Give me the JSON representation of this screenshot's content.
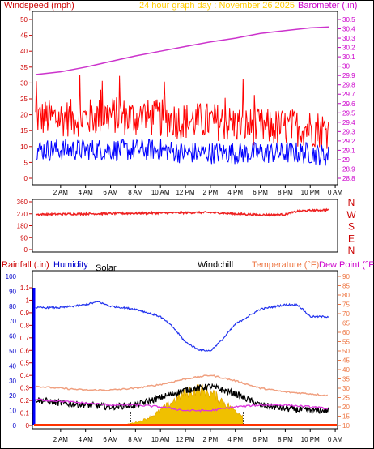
{
  "header": {
    "windspeed_label": "Windspeed (mph)",
    "title": "24 hour graph day : November 26 2025",
    "barometer_label": "Barometer (.in)"
  },
  "legend2": {
    "rainfall_label": "Rainfall (.in)",
    "humidity_label": "Humidity",
    "solar_label": "Solar",
    "windchill_label": "Windchill",
    "temperature_label": "Temperature (°F)",
    "dewpoint_label": "Dew Point (°F)"
  },
  "colors": {
    "wind_gust": "#ff0000",
    "wind_avg": "#0000ff",
    "barometer": "#cc33cc",
    "direction": "#ee2222",
    "humidity": "#2233ee",
    "temperature": "#f0a080",
    "windchill": "#000000",
    "dewpoint": "#dd33dd",
    "solar": "#f0c000",
    "rainfall": "#ff3300"
  },
  "chart_data": [
    {
      "type": "line",
      "name": "wind-barometer",
      "x_ticks": [
        "2 AM",
        "4 AM",
        "6 AM",
        "8 AM",
        "10 AM",
        "12 PM",
        "2 PM",
        "4 PM",
        "6 PM",
        "8 PM",
        "10 PM",
        "0 AM"
      ],
      "y_left_ticks": [
        "0",
        "5",
        "10",
        "15",
        "20",
        "25",
        "30",
        "35",
        "40",
        "45",
        "50"
      ],
      "y_left_range": [
        0,
        50
      ],
      "y_right_ticks": [
        "28.8",
        "28.9",
        "29",
        "29.1",
        "29.2",
        "29.3",
        "29.4",
        "29.5",
        "29.6",
        "29.7",
        "29.8",
        "29.9",
        "30",
        "30.1",
        "30.2",
        "30.3",
        "30.4",
        "30.5"
      ],
      "y_right_range": [
        28.8,
        30.5
      ],
      "barometer": {
        "x_hours": [
          0,
          2,
          4,
          6,
          8,
          10,
          12,
          14,
          16,
          18,
          20,
          22,
          23.5
        ],
        "values": [
          29.91,
          29.94,
          29.99,
          30.05,
          30.11,
          30.16,
          30.21,
          30.26,
          30.3,
          30.35,
          30.38,
          30.41,
          30.42
        ]
      },
      "wind_gust": {
        "x_hours": [
          0,
          2,
          4,
          6,
          8,
          10,
          12,
          14,
          16,
          18,
          20,
          22,
          23.5
        ],
        "values": [
          19,
          19,
          19,
          20,
          19,
          19,
          18,
          18,
          17,
          16,
          16,
          16,
          15
        ]
      },
      "wind_avg": {
        "x_hours": [
          0,
          2,
          4,
          6,
          8,
          10,
          12,
          14,
          16,
          18,
          20,
          22,
          23.5
        ],
        "values": [
          9,
          9,
          9,
          9,
          9,
          9,
          8,
          8,
          8,
          8,
          8,
          8,
          7
        ]
      }
    },
    {
      "type": "line",
      "name": "wind-direction",
      "y_left_ticks": [
        "360",
        "270",
        "180",
        "90",
        "0"
      ],
      "y_left_range": [
        0,
        360
      ],
      "y_right_ticks": [
        "N",
        "W",
        "S",
        "E",
        "N"
      ],
      "direction": {
        "x_hours": [
          0,
          2,
          4,
          6,
          8,
          10,
          12,
          14,
          16,
          18,
          20,
          21,
          22,
          23.5
        ],
        "values": [
          265,
          268,
          270,
          272,
          274,
          276,
          278,
          280,
          270,
          262,
          265,
          290,
          295,
          300
        ]
      }
    },
    {
      "type": "line",
      "name": "temperature-humidity",
      "x_ticks": [
        "2 AM",
        "4 AM",
        "6 AM",
        "8 AM",
        "10 AM",
        "12 PM",
        "2 PM",
        "4 PM",
        "6 PM",
        "8 PM",
        "10 PM",
        "0 AM"
      ],
      "humidity_ticks": [
        "0",
        "10",
        "20",
        "30",
        "40",
        "50",
        "60",
        "70",
        "80",
        "90",
        "100"
      ],
      "humidity_range": [
        0,
        100
      ],
      "rain_ticks": [
        "0",
        "0.1",
        "0.2",
        "0.3",
        "0.4",
        "0.5",
        "0.6",
        "0.7",
        "0.8",
        "0.9",
        "1",
        "1.1"
      ],
      "rain_range": [
        0,
        1.1
      ],
      "temp_ticks": [
        "10",
        "15",
        "20",
        "25",
        "30",
        "35",
        "40",
        "45",
        "50",
        "55",
        "60",
        "65",
        "70",
        "75",
        "80",
        "85",
        "90"
      ],
      "temp_range": [
        10,
        90
      ],
      "humidity": {
        "x_hours": [
          0,
          2,
          4,
          5,
          6,
          8,
          10,
          11,
          12,
          13,
          14,
          15,
          16,
          18,
          20,
          21,
          22,
          23.5
        ],
        "values": [
          79,
          79,
          81,
          83,
          80,
          78,
          73,
          66,
          56,
          51,
          50,
          58,
          68,
          78,
          81,
          81,
          73,
          73
        ]
      },
      "temperature": {
        "x_hours": [
          0,
          2,
          4,
          6,
          8,
          10,
          12,
          14,
          16,
          18,
          20,
          22,
          23.5
        ],
        "values": [
          31,
          30,
          29,
          29,
          30,
          32,
          35,
          37,
          34,
          30,
          28,
          27,
          26
        ]
      },
      "windchill": {
        "x_hours": [
          0,
          2,
          4,
          6,
          8,
          10,
          12,
          14,
          16,
          18,
          20,
          22,
          23.5
        ],
        "values": [
          24,
          22,
          21,
          20,
          21,
          25,
          29,
          31,
          27,
          21,
          19,
          18,
          18
        ]
      },
      "dewpoint": {
        "x_hours": [
          0,
          2,
          4,
          6,
          8,
          10,
          12,
          14,
          16,
          18,
          20,
          22,
          23.5
        ],
        "values": [
          24,
          23,
          22,
          21,
          21,
          20,
          18,
          18,
          20,
          21,
          21,
          20,
          19
        ]
      },
      "solar_peak_hour": 13,
      "rainfall_total": 0
    }
  ]
}
